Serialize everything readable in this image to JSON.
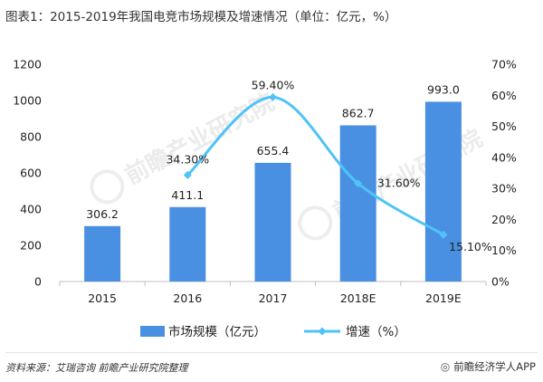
{
  "title": "图表1：2015-2019年我国电竞市场规模及增速情况（单位：亿元，%）",
  "source": "资料来源：艾瑞咨询 前瞻产业研究院整理",
  "brand": "前瞻经济学人APP",
  "watermark": "前瞻产业研究院",
  "colors": {
    "bar": "#4a90e2",
    "line": "#4fc3f7",
    "axis": "#bfbfbf"
  },
  "chart_data": {
    "type": "bar",
    "categories": [
      "2015",
      "2016",
      "2017",
      "2018E",
      "2019E"
    ],
    "series": [
      {
        "name": "市场规模（亿元）",
        "type": "bar",
        "axis": "left",
        "values": [
          306.2,
          411.1,
          655.4,
          862.7,
          993.0
        ],
        "labels": [
          "306.2",
          "411.1",
          "655.4",
          "862.7",
          "993.0"
        ]
      },
      {
        "name": "增速（%）",
        "type": "line",
        "axis": "right",
        "values": [
          null,
          34.3,
          59.4,
          31.6,
          15.1
        ],
        "labels": [
          "",
          "34.30%",
          "59.40%",
          "31.60%",
          "15.10%"
        ]
      }
    ],
    "yleft": {
      "lim": [
        0,
        1200
      ],
      "ticks": [
        "0",
        "200",
        "400",
        "600",
        "800",
        "1000",
        "1200"
      ]
    },
    "yright": {
      "lim": [
        0,
        70
      ],
      "ticks": [
        "0%",
        "10%",
        "20%",
        "30%",
        "40%",
        "50%",
        "60%",
        "70%"
      ]
    },
    "legend": "bottom",
    "grid": false
  }
}
